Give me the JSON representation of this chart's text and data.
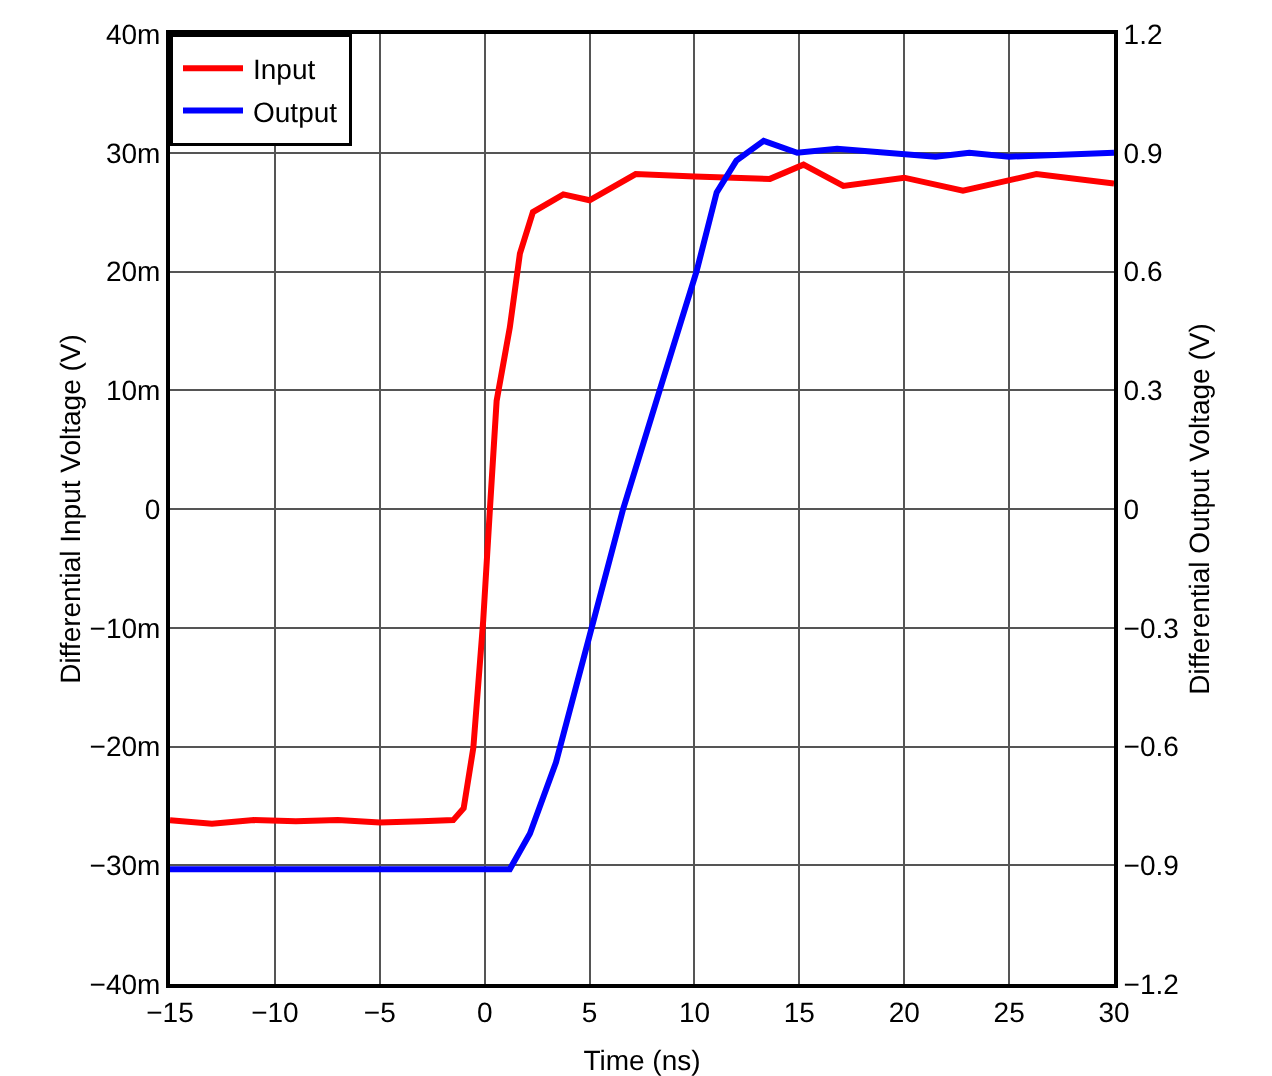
{
  "chart_data": {
    "type": "line",
    "xlabel": "Time (ns)",
    "ylabel": "Differential Input Voltage (V)",
    "y2label": "Differential Output Voltage (V)",
    "xlim": [
      -15,
      30
    ],
    "xticks": [
      {
        "value": -15,
        "label": "−15"
      },
      {
        "value": -10,
        "label": "−10"
      },
      {
        "value": -5,
        "label": "−5"
      },
      0,
      5,
      10,
      15,
      20,
      25,
      30
    ],
    "ylim": [
      -40,
      40
    ],
    "yticks": [
      {
        "value": -40,
        "label": "−40m"
      },
      {
        "value": -30,
        "label": "−30m"
      },
      {
        "value": -20,
        "label": "−20m"
      },
      {
        "value": -10,
        "label": "−10m"
      },
      0,
      {
        "value": 10,
        "label": "10m"
      },
      {
        "value": 20,
        "label": "20m"
      },
      {
        "value": 30,
        "label": "30m"
      },
      {
        "value": 40,
        "label": "40m"
      }
    ],
    "y2lim": [
      -1.2,
      1.2
    ],
    "y2ticks": [
      {
        "value": -1.2,
        "label": "−1.2"
      },
      {
        "value": -0.9,
        "label": "−0.9"
      },
      {
        "value": -0.6,
        "label": "−0.6"
      },
      {
        "value": -0.3,
        "label": "−0.3"
      },
      0,
      0.3,
      0.6,
      0.9,
      1.2
    ],
    "grid": true,
    "legend": "top left",
    "line_style": "solid",
    "marker": "none",
    "series": [
      {
        "name": "Input",
        "color": "#ff0000",
        "x": [
          -15,
          -13,
          -11,
          -9,
          -7,
          -5,
          -3,
          -1.5,
          -1.0,
          -0.54,
          -0.07,
          0.25,
          0.57,
          1.2,
          1.68,
          2.3,
          3.75,
          5,
          7.2,
          10,
          13.6,
          15.2,
          17.1,
          20,
          22.8,
          26.3,
          30
        ],
        "values": [
          -26.2,
          -26.5,
          -26.2,
          -26.3,
          -26.2,
          -26.4,
          -26.3,
          -26.2,
          -25.2,
          -20.1,
          -9.4,
          0.0,
          9.1,
          15.3,
          21.5,
          25,
          26.5,
          26,
          28.2,
          28,
          27.8,
          29,
          27.2,
          27.9,
          26.8,
          28.2,
          27.4
        ]
      },
      {
        "name": "Output",
        "color": "#0000ff",
        "axis": "y2",
        "x": [
          -15,
          -10,
          -5,
          0,
          1.2,
          2.16,
          3.4,
          5,
          6.6,
          8.4,
          10.1,
          11.06,
          12,
          13.3,
          14.9,
          16.8,
          21.5,
          23.1,
          25,
          30
        ],
        "values": [
          -0.91,
          -0.91,
          -0.91,
          -0.91,
          -0.91,
          -0.82,
          -0.64,
          -0.32,
          0.0,
          0.31,
          0.6,
          0.8,
          0.88,
          0.93,
          0.9,
          0.91,
          0.89,
          0.9,
          0.89,
          0.9
        ]
      }
    ]
  }
}
